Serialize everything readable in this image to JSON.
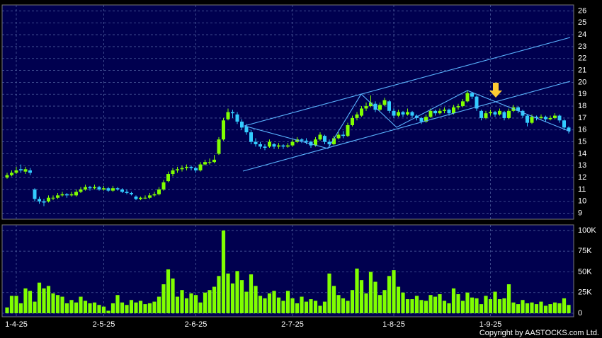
{
  "chart_data": [
    {
      "type": "candlestick",
      "up_color": "#80ff00",
      "down_color": "#33ccff",
      "ylim": [
        8.5,
        26.5
      ],
      "yticks": [
        9,
        10,
        11,
        12,
        13,
        14,
        15,
        16,
        17,
        18,
        19,
        20,
        21,
        22,
        23,
        24,
        25,
        26
      ],
      "grid": true,
      "candles": [
        [
          12.0,
          12.4,
          11.9,
          12.2
        ],
        [
          12.2,
          12.6,
          12.1,
          12.4
        ],
        [
          12.4,
          12.9,
          12.3,
          12.6
        ],
        [
          12.7,
          13.1,
          12.4,
          12.6
        ],
        [
          12.5,
          12.9,
          12.3,
          12.7
        ],
        [
          12.6,
          12.8,
          12.2,
          12.4
        ],
        [
          11.0,
          11.1,
          10.0,
          10.2
        ],
        [
          10.2,
          10.4,
          9.8,
          10.0
        ],
        [
          10.0,
          10.2,
          9.6,
          9.9
        ],
        [
          10.0,
          10.5,
          9.9,
          10.3
        ],
        [
          10.3,
          10.5,
          10.1,
          10.3
        ],
        [
          10.3,
          10.7,
          10.2,
          10.5
        ],
        [
          10.5,
          10.8,
          10.4,
          10.6
        ],
        [
          10.6,
          10.7,
          10.3,
          10.5
        ],
        [
          10.5,
          10.8,
          10.4,
          10.6
        ],
        [
          10.5,
          11.0,
          10.4,
          10.8
        ],
        [
          10.8,
          11.2,
          10.7,
          11.0
        ],
        [
          11.0,
          11.4,
          10.9,
          11.2
        ],
        [
          11.2,
          11.3,
          10.9,
          11.1
        ],
        [
          11.1,
          11.4,
          11.0,
          11.2
        ],
        [
          11.2,
          11.3,
          10.9,
          11.0
        ],
        [
          11.0,
          11.3,
          10.9,
          11.1
        ],
        [
          11.1,
          11.2,
          10.8,
          10.9
        ],
        [
          10.9,
          11.3,
          10.8,
          11.1
        ],
        [
          11.1,
          11.2,
          10.9,
          11.0
        ],
        [
          11.0,
          11.1,
          10.7,
          10.8
        ],
        [
          10.8,
          11.0,
          10.6,
          10.7
        ],
        [
          10.7,
          10.8,
          10.5,
          10.6
        ],
        [
          10.4,
          10.5,
          10.1,
          10.2
        ],
        [
          10.2,
          10.4,
          10.1,
          10.3
        ],
        [
          10.3,
          10.5,
          10.2,
          10.3
        ],
        [
          10.3,
          10.7,
          10.2,
          10.5
        ],
        [
          10.5,
          10.8,
          10.4,
          10.6
        ],
        [
          10.6,
          11.2,
          10.5,
          11.0
        ],
        [
          11.0,
          11.8,
          10.9,
          11.6
        ],
        [
          11.7,
          12.5,
          11.6,
          12.3
        ],
        [
          12.3,
          12.8,
          12.1,
          12.6
        ],
        [
          12.6,
          12.9,
          12.4,
          12.7
        ],
        [
          12.7,
          13.0,
          12.5,
          12.8
        ],
        [
          12.8,
          13.1,
          12.6,
          12.9
        ],
        [
          12.9,
          13.0,
          12.6,
          12.8
        ],
        [
          12.8,
          12.9,
          12.4,
          12.6
        ],
        [
          12.6,
          13.3,
          12.5,
          13.1
        ],
        [
          13.1,
          13.5,
          13.0,
          13.3
        ],
        [
          13.3,
          13.6,
          13.1,
          13.3
        ],
        [
          13.3,
          13.9,
          13.2,
          13.5
        ],
        [
          14.0,
          15.4,
          13.9,
          15.2
        ],
        [
          15.2,
          17.0,
          15.1,
          16.8
        ],
        [
          16.9,
          17.8,
          16.8,
          17.5
        ],
        [
          17.5,
          17.7,
          17.0,
          17.4
        ],
        [
          17.3,
          17.5,
          16.5,
          16.7
        ],
        [
          16.7,
          16.9,
          16.0,
          16.2
        ],
        [
          16.3,
          16.5,
          15.6,
          15.8
        ],
        [
          15.8,
          16.0,
          14.8,
          15.0
        ],
        [
          15.0,
          15.3,
          14.6,
          14.8
        ],
        [
          14.8,
          15.0,
          14.4,
          14.6
        ],
        [
          14.6,
          14.8,
          14.3,
          14.5
        ],
        [
          14.6,
          15.2,
          14.5,
          15.0
        ],
        [
          14.8,
          14.9,
          14.4,
          14.6
        ],
        [
          14.6,
          14.9,
          14.4,
          14.7
        ],
        [
          14.7,
          14.8,
          14.4,
          14.6
        ],
        [
          14.6,
          14.9,
          14.5,
          14.7
        ],
        [
          14.7,
          15.2,
          14.6,
          15.0
        ],
        [
          15.0,
          15.4,
          14.9,
          15.2
        ],
        [
          15.2,
          15.3,
          14.9,
          15.1
        ],
        [
          15.1,
          15.3,
          14.8,
          15.0
        ],
        [
          15.0,
          15.1,
          14.5,
          14.7
        ],
        [
          14.7,
          15.4,
          14.6,
          15.2
        ],
        [
          15.2,
          15.8,
          15.1,
          15.6
        ],
        [
          15.5,
          15.6,
          14.8,
          15.0
        ],
        [
          15.0,
          15.2,
          14.6,
          14.8
        ],
        [
          14.8,
          15.5,
          14.7,
          15.3
        ],
        [
          15.3,
          15.8,
          15.2,
          15.6
        ],
        [
          15.6,
          15.9,
          15.3,
          15.5
        ],
        [
          15.5,
          16.6,
          15.4,
          16.4
        ],
        [
          16.4,
          17.2,
          16.3,
          17.0
        ],
        [
          17.0,
          17.5,
          16.8,
          17.3
        ],
        [
          17.2,
          18.0,
          17.1,
          17.8
        ],
        [
          17.8,
          18.3,
          17.6,
          18.0
        ],
        [
          18.0,
          18.9,
          17.9,
          18.3
        ],
        [
          18.2,
          18.4,
          17.5,
          17.7
        ],
        [
          17.7,
          18.3,
          17.6,
          18.1
        ],
        [
          18.1,
          18.7,
          18.0,
          18.5
        ],
        [
          18.4,
          18.5,
          17.4,
          17.6
        ],
        [
          17.6,
          17.8,
          17.0,
          17.2
        ],
        [
          17.2,
          17.7,
          17.1,
          17.5
        ],
        [
          17.5,
          17.6,
          17.1,
          17.3
        ],
        [
          17.3,
          17.8,
          17.2,
          17.5
        ],
        [
          17.5,
          17.6,
          17.0,
          17.2
        ],
        [
          17.2,
          17.3,
          16.8,
          17.0
        ],
        [
          17.0,
          17.1,
          16.5,
          16.7
        ],
        [
          16.7,
          17.3,
          16.6,
          17.1
        ],
        [
          17.1,
          17.8,
          17.0,
          17.6
        ],
        [
          17.6,
          17.7,
          17.2,
          17.4
        ],
        [
          17.4,
          17.8,
          17.3,
          17.6
        ],
        [
          17.6,
          17.9,
          17.4,
          17.7
        ],
        [
          17.7,
          17.8,
          17.2,
          17.4
        ],
        [
          17.4,
          18.1,
          17.3,
          17.9
        ],
        [
          17.9,
          18.2,
          17.7,
          18.0
        ],
        [
          18.0,
          18.6,
          17.9,
          18.4
        ],
        [
          18.4,
          19.3,
          18.3,
          19.1
        ],
        [
          19.1,
          19.2,
          18.6,
          18.8
        ],
        [
          18.8,
          18.9,
          17.6,
          17.8
        ],
        [
          17.6,
          17.7,
          16.8,
          17.0
        ],
        [
          17.0,
          17.6,
          16.9,
          17.4
        ],
        [
          17.4,
          17.7,
          17.2,
          17.5
        ],
        [
          17.5,
          17.6,
          17.1,
          17.3
        ],
        [
          17.3,
          17.8,
          17.2,
          17.6
        ],
        [
          17.5,
          17.6,
          16.8,
          17.0
        ],
        [
          17.0,
          17.8,
          16.9,
          17.6
        ],
        [
          17.6,
          18.1,
          17.5,
          17.9
        ],
        [
          17.9,
          18.0,
          17.4,
          17.6
        ],
        [
          17.6,
          17.7,
          17.0,
          17.2
        ],
        [
          17.2,
          17.3,
          16.3,
          16.6
        ],
        [
          16.6,
          17.3,
          16.5,
          17.1
        ],
        [
          17.1,
          17.2,
          16.8,
          17.0
        ],
        [
          17.0,
          17.3,
          16.9,
          17.1
        ],
        [
          17.1,
          17.2,
          16.7,
          16.9
        ],
        [
          16.9,
          17.2,
          16.8,
          17.0
        ],
        [
          17.0,
          17.4,
          16.9,
          17.2
        ],
        [
          17.2,
          17.3,
          16.6,
          16.8
        ],
        [
          16.8,
          16.9,
          16.0,
          16.2
        ],
        [
          16.2,
          16.3,
          15.7,
          15.9
        ]
      ]
    },
    {
      "type": "bar",
      "color": "#80ff00",
      "ylim": [
        -4300,
        106800
      ],
      "yticks": [
        {
          "value": 0,
          "label": "0"
        },
        {
          "value": 25000,
          "label": "25K"
        },
        {
          "value": 50000,
          "label": "50K"
        },
        {
          "value": 75000,
          "label": "75K"
        },
        {
          "value": 100000,
          "label": "100K"
        }
      ],
      "grid": true,
      "copyright": "Copyright by AASTOCKS.com Ltd.",
      "categories": [
        null,
        null,
        "1-4-25",
        null,
        null,
        null,
        null,
        null,
        null,
        null,
        null,
        null,
        null,
        null,
        null,
        null,
        null,
        null,
        null,
        null,
        null,
        "2-5-25",
        null,
        null,
        null,
        null,
        null,
        null,
        null,
        null,
        null,
        null,
        null,
        null,
        null,
        null,
        null,
        null,
        null,
        null,
        null,
        "2-6-25",
        null,
        null,
        null,
        null,
        null,
        null,
        null,
        null,
        null,
        null,
        null,
        null,
        null,
        null,
        null,
        null,
        null,
        null,
        null,
        null,
        "2-7-25",
        null,
        null,
        null,
        null,
        null,
        null,
        null,
        null,
        null,
        null,
        null,
        null,
        null,
        null,
        null,
        null,
        null,
        null,
        null,
        null,
        null,
        "1-8-25",
        null,
        null,
        null,
        null,
        null,
        null,
        null,
        null,
        null,
        null,
        null,
        null,
        null,
        null,
        null,
        null,
        null,
        null,
        null,
        null,
        "1-9-25",
        null,
        null,
        null,
        null,
        null,
        null,
        null,
        null,
        null,
        null,
        null,
        null,
        null,
        null,
        null,
        null,
        null
      ],
      "values": [
        7000,
        21000,
        21000,
        12000,
        30000,
        27000,
        14000,
        37000,
        30000,
        33000,
        24000,
        22000,
        20000,
        12000,
        16000,
        13000,
        20000,
        15000,
        12000,
        13000,
        10000,
        8000,
        3000,
        12000,
        22000,
        13000,
        10000,
        16000,
        13000,
        15000,
        11000,
        12000,
        14000,
        20000,
        35000,
        53000,
        42000,
        20000,
        28000,
        18000,
        24000,
        22000,
        13000,
        25000,
        28000,
        32000,
        45000,
        100000,
        48000,
        36000,
        51000,
        40000,
        26000,
        47000,
        33000,
        21000,
        18000,
        24000,
        27000,
        19000,
        15000,
        27000,
        18000,
        12000,
        20000,
        14000,
        17000,
        15000,
        9000,
        14000,
        48000,
        33000,
        22000,
        18000,
        15000,
        28000,
        54000,
        40000,
        24000,
        50000,
        38000,
        22000,
        28000,
        45000,
        52000,
        32000,
        25000,
        17000,
        17000,
        21000,
        16000,
        15000,
        22000,
        20000,
        23000,
        15000,
        12000,
        30000,
        23000,
        15000,
        25000,
        19000,
        18000,
        11000,
        21000,
        17000,
        26000,
        17000,
        18000,
        35000,
        13000,
        11000,
        16000,
        12000,
        13000,
        11000,
        14000,
        9000,
        11000,
        13000,
        12000,
        18000,
        10000
      ]
    }
  ]
}
